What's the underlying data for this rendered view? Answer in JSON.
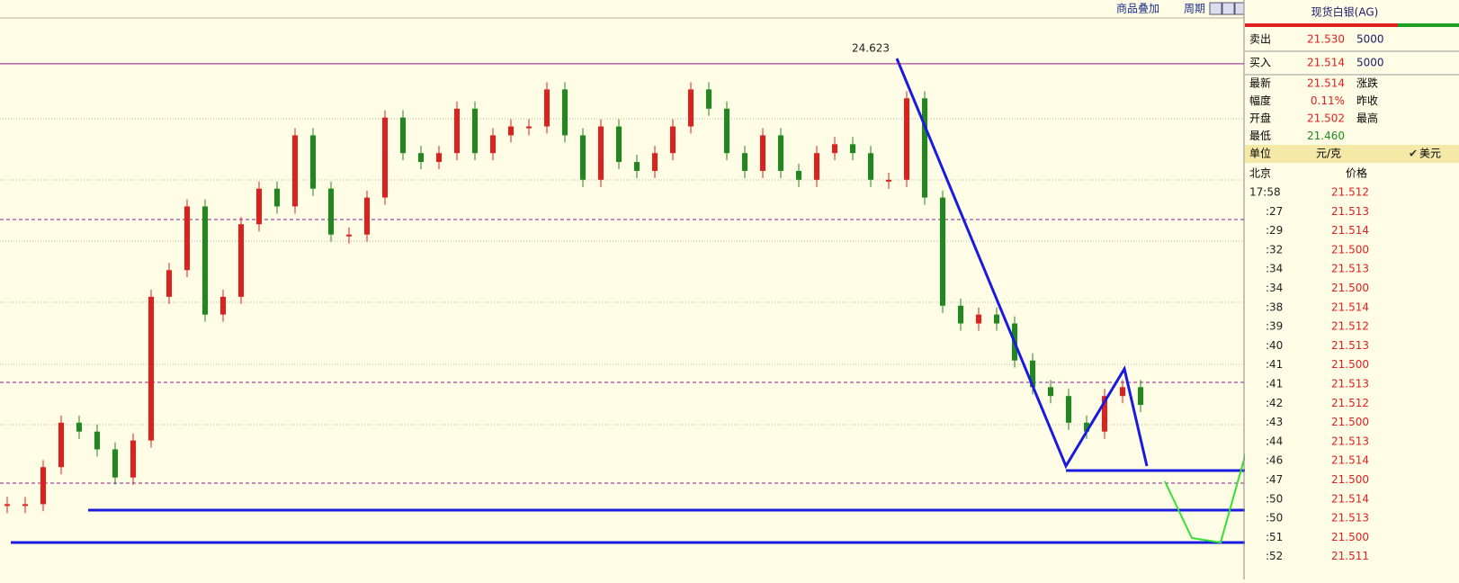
{
  "toolbar": {
    "overlay": "商品叠加",
    "period": "周期"
  },
  "chart": {
    "type": "candlestick",
    "ylim": [
      21.3,
      24.75
    ],
    "peak_label": 24.623,
    "closes": [
      21.65,
      21.65,
      21.9,
      22.2,
      22.14,
      22.02,
      21.83,
      22.08,
      23.05,
      23.23,
      23.66,
      22.93,
      23.05,
      23.54,
      23.78,
      23.66,
      24.14,
      23.78,
      23.47,
      23.47,
      23.72,
      24.26,
      24.02,
      23.96,
      24.02,
      24.32,
      24.02,
      24.14,
      24.2,
      24.2,
      24.45,
      24.14,
      23.84,
      24.2,
      23.96,
      23.9,
      24.02,
      24.2,
      24.45,
      24.32,
      24.02,
      23.9,
      24.14,
      23.9,
      23.84,
      24.02,
      24.08,
      24.02,
      23.84,
      23.84,
      24.39,
      23.72,
      22.99,
      22.87,
      22.93,
      22.87,
      22.62,
      22.44,
      22.38,
      22.2,
      22.14,
      22.38,
      22.44,
      22.32
    ],
    "up_color": "#e0201c",
    "down_color": "#1e8a1e"
  },
  "quote": {
    "title": "现货白银(AG)",
    "sell": {
      "label": "卖出",
      "price": "21.530",
      "volume": "5000"
    },
    "buy": {
      "label": "买入",
      "price": "21.514",
      "volume": "5000"
    },
    "stats": [
      [
        "最新",
        "21.514",
        "涨跌"
      ],
      [
        "幅度",
        "0.11%",
        "昨收"
      ],
      [
        "开盘",
        "21.502",
        "最高"
      ],
      [
        "最低",
        "21.460",
        ""
      ]
    ],
    "unit": {
      "label": "单位",
      "value": "元/克",
      "option": "美元"
    },
    "ticks_header": {
      "time": "北京",
      "price": "价格"
    },
    "ticks": [
      [
        "17:58",
        "21.512"
      ],
      [
        ":27",
        "21.513"
      ],
      [
        ":29",
        "21.514"
      ],
      [
        ":32",
        "21.500"
      ],
      [
        ":34",
        "21.513"
      ],
      [
        ":34",
        "21.500"
      ],
      [
        ":38",
        "21.514"
      ],
      [
        ":39",
        "21.512"
      ],
      [
        ":40",
        "21.513"
      ],
      [
        ":41",
        "21.500"
      ],
      [
        ":41",
        "21.513"
      ],
      [
        ":42",
        "21.512"
      ],
      [
        ":43",
        "21.500"
      ],
      [
        ":44",
        "21.513"
      ],
      [
        ":46",
        "21.514"
      ],
      [
        ":47",
        "21.500"
      ],
      [
        ":50",
        "21.514"
      ],
      [
        ":50",
        "21.513"
      ],
      [
        ":51",
        "21.500"
      ],
      [
        ":52",
        "21.511"
      ]
    ]
  }
}
